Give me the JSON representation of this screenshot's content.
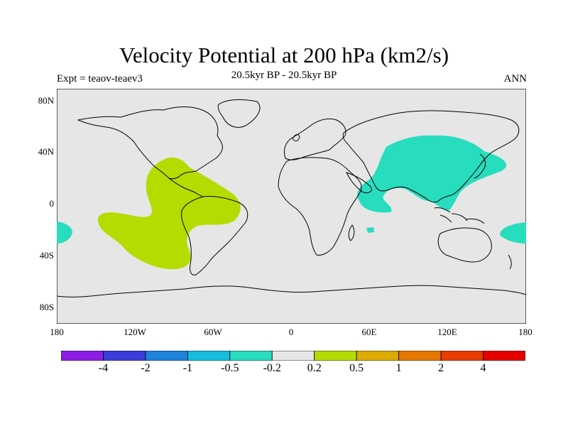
{
  "title": "Velocity Potential at 200 hPa (km2/s)",
  "subtitle": "20.5kyr BP - 20.5kyr BP",
  "left_label": "Expt = teaov-teaev3",
  "right_label": "ANN",
  "chart_data": {
    "type": "filled-contour-map",
    "variable": "Velocity Potential at 200 hPa",
    "units": "km2/s",
    "xlim": [
      -180,
      180
    ],
    "ylim": [
      -90,
      90
    ],
    "lat_ticks": [
      "80N",
      "40N",
      "0",
      "40S",
      "80S"
    ],
    "lon_ticks": [
      "180",
      "120W",
      "60W",
      "0",
      "60E",
      "120E",
      "180"
    ],
    "positive_anomaly_region": "Eastern tropical Pacific and South America (0.2 to 0.5)",
    "negative_anomaly_region": "Maritime continent / western Pacific (-0.5 to -0.2)",
    "colorbar": {
      "levels": [
        "-4",
        "-2",
        "-1",
        "-0.5",
        "-0.2",
        "0.2",
        "0.5",
        "1",
        "2",
        "4"
      ],
      "colors": [
        "#8c1ee6",
        "#3c3cdc",
        "#1e82dc",
        "#14bedc",
        "#28dcbe",
        "#e6e6e6",
        "#b4dc00",
        "#dcaa00",
        "#e67800",
        "#e63c00",
        "#e60000"
      ]
    },
    "background_color": "#e6e6e6",
    "positive_color": "#b4dc00",
    "negative_color": "#28dcbe"
  }
}
